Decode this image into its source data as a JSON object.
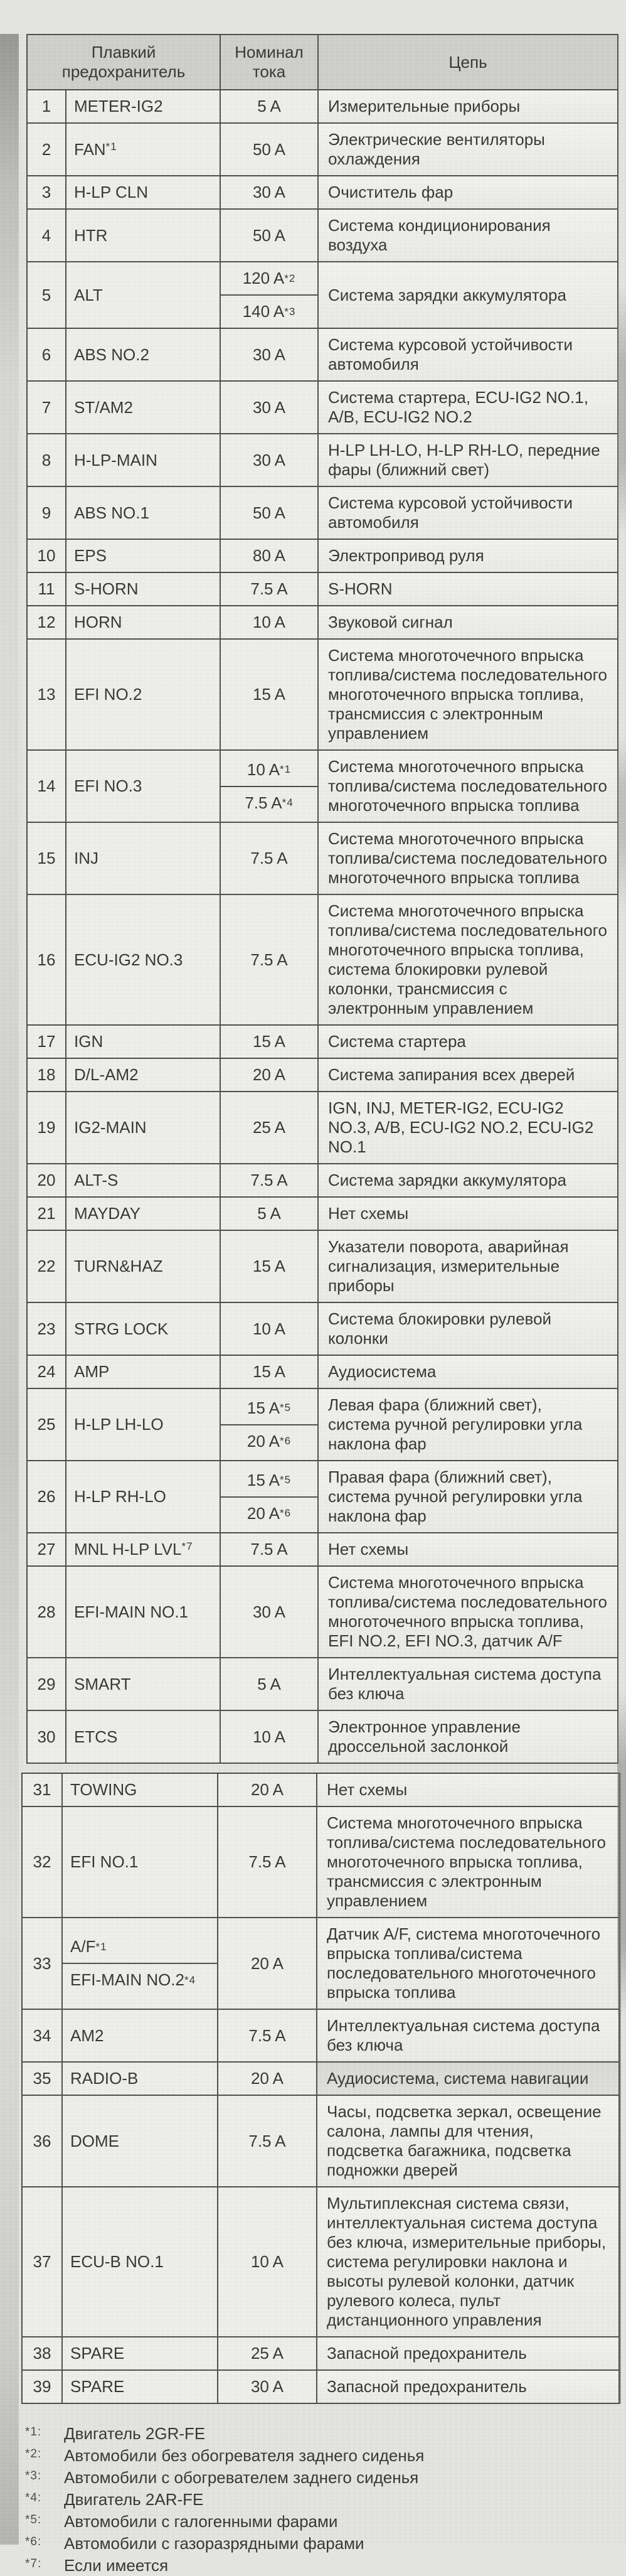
{
  "header": {
    "col_fuse": "Плавкий предохранитель",
    "col_amp": "Номинал тока",
    "col_circuit": "Цепь"
  },
  "table": {
    "split_at": 30,
    "rows": [
      {
        "no": "1",
        "fuse": [
          {
            "t": "METER-IG2"
          }
        ],
        "amp": [
          {
            "t": "5 A"
          }
        ],
        "circuit": "Измерительные приборы"
      },
      {
        "no": "2",
        "fuse": [
          {
            "t": "FAN",
            "s": "*1"
          }
        ],
        "amp": [
          {
            "t": "50 A"
          }
        ],
        "circuit": "Электрические вентиляторы охлаждения"
      },
      {
        "no": "3",
        "fuse": [
          {
            "t": "H-LP CLN"
          }
        ],
        "amp": [
          {
            "t": "30 A"
          }
        ],
        "circuit": "Очиститель фар"
      },
      {
        "no": "4",
        "fuse": [
          {
            "t": "HTR"
          }
        ],
        "amp": [
          {
            "t": "50 A"
          }
        ],
        "circuit": "Система кондиционирования воздуха"
      },
      {
        "no": "5",
        "fuse": [
          {
            "t": "ALT"
          }
        ],
        "amp": [
          {
            "t": "120 A",
            "s": "*2"
          },
          {
            "t": "140 A",
            "s": "*3"
          }
        ],
        "circuit": "Система зарядки аккумулятора"
      },
      {
        "no": "6",
        "fuse": [
          {
            "t": "ABS NO.2"
          }
        ],
        "amp": [
          {
            "t": "30 A"
          }
        ],
        "circuit": "Система курсовой устойчивости автомобиля"
      },
      {
        "no": "7",
        "fuse": [
          {
            "t": "ST/AM2"
          }
        ],
        "amp": [
          {
            "t": "30 A"
          }
        ],
        "circuit": "Система стартера, ECU-IG2 NO.1, A/B, ECU-IG2 NO.2"
      },
      {
        "no": "8",
        "fuse": [
          {
            "t": "H-LP-MAIN"
          }
        ],
        "amp": [
          {
            "t": "30 A"
          }
        ],
        "circuit": "H-LP LH-LO, H-LP RH-LO, передние фары (ближний свет)"
      },
      {
        "no": "9",
        "fuse": [
          {
            "t": "ABS NO.1"
          }
        ],
        "amp": [
          {
            "t": "50 A"
          }
        ],
        "circuit": "Система курсовой устойчивости автомобиля"
      },
      {
        "no": "10",
        "fuse": [
          {
            "t": "EPS"
          }
        ],
        "amp": [
          {
            "t": "80 A"
          }
        ],
        "circuit": "Электропривод руля"
      },
      {
        "no": "11",
        "fuse": [
          {
            "t": "S-HORN"
          }
        ],
        "amp": [
          {
            "t": "7.5 A"
          }
        ],
        "circuit": "S-HORN"
      },
      {
        "no": "12",
        "fuse": [
          {
            "t": "HORN"
          }
        ],
        "amp": [
          {
            "t": "10 A"
          }
        ],
        "circuit": "Звуковой сигнал"
      },
      {
        "no": "13",
        "fuse": [
          {
            "t": "EFI NO.2"
          }
        ],
        "amp": [
          {
            "t": "15 A"
          }
        ],
        "circuit": "Система многоточечного впрыска топлива/система последовательного многоточечного впрыска топлива, трансмиссия с электронным управлением"
      },
      {
        "no": "14",
        "fuse": [
          {
            "t": "EFI NO.3"
          }
        ],
        "amp": [
          {
            "t": "10 A",
            "s": "*1"
          },
          {
            "t": "7.5 A",
            "s": "*4"
          }
        ],
        "circuit": "Система многоточечного впрыска топлива/система последовательного многоточечного впрыска топлива"
      },
      {
        "no": "15",
        "fuse": [
          {
            "t": "INJ"
          }
        ],
        "amp": [
          {
            "t": "7.5 A"
          }
        ],
        "circuit": "Система многоточечного впрыска топлива/система последовательного многоточечного впрыска топлива"
      },
      {
        "no": "16",
        "fuse": [
          {
            "t": "ECU-IG2 NO.3"
          }
        ],
        "amp": [
          {
            "t": "7.5 A"
          }
        ],
        "circuit": "Система многоточечного впрыска топлива/система последовательного многоточечного впрыска топлива, система блокировки рулевой колонки, трансмиссия с электронным управлением"
      },
      {
        "no": "17",
        "fuse": [
          {
            "t": "IGN"
          }
        ],
        "amp": [
          {
            "t": "15 A"
          }
        ],
        "circuit": "Система стартера"
      },
      {
        "no": "18",
        "fuse": [
          {
            "t": "D/L-AM2"
          }
        ],
        "amp": [
          {
            "t": "20 A"
          }
        ],
        "circuit": "Система запирания всех дверей"
      },
      {
        "no": "19",
        "fuse": [
          {
            "t": "IG2-MAIN"
          }
        ],
        "amp": [
          {
            "t": "25 A"
          }
        ],
        "circuit": "IGN, INJ, METER-IG2, ECU-IG2 NO.3, A/B, ECU-IG2 NO.2, ECU-IG2 NO.1"
      },
      {
        "no": "20",
        "fuse": [
          {
            "t": "ALT-S"
          }
        ],
        "amp": [
          {
            "t": "7.5 A"
          }
        ],
        "circuit": "Система зарядки аккумулятора"
      },
      {
        "no": "21",
        "fuse": [
          {
            "t": "MAYDAY"
          }
        ],
        "amp": [
          {
            "t": "5 A"
          }
        ],
        "circuit": "Нет схемы"
      },
      {
        "no": "22",
        "fuse": [
          {
            "t": "TURN&HAZ"
          }
        ],
        "amp": [
          {
            "t": "15 A"
          }
        ],
        "circuit": "Указатели поворота, аварийная сигнализация, измерительные приборы"
      },
      {
        "no": "23",
        "fuse": [
          {
            "t": "STRG LOCK"
          }
        ],
        "amp": [
          {
            "t": "10 A"
          }
        ],
        "circuit": "Система блокировки рулевой колонки"
      },
      {
        "no": "24",
        "fuse": [
          {
            "t": "AMP"
          }
        ],
        "amp": [
          {
            "t": "15 A"
          }
        ],
        "circuit": "Аудиосистема"
      },
      {
        "no": "25",
        "fuse": [
          {
            "t": "H-LP LH-LO"
          }
        ],
        "amp": [
          {
            "t": "15 A",
            "s": "*5"
          },
          {
            "t": "20 A",
            "s": "*6"
          }
        ],
        "circuit": "Левая фара (ближний свет), система ручной регулировки угла наклона фар"
      },
      {
        "no": "26",
        "fuse": [
          {
            "t": "H-LP RH-LO"
          }
        ],
        "amp": [
          {
            "t": "15 A",
            "s": "*5"
          },
          {
            "t": "20 A",
            "s": "*6"
          }
        ],
        "circuit": "Правая фара (ближний свет), система ручной регулировки угла наклона фар"
      },
      {
        "no": "27",
        "fuse": [
          {
            "t": "MNL H-LP LVL",
            "s": "*7"
          }
        ],
        "amp": [
          {
            "t": "7.5 A"
          }
        ],
        "circuit": "Нет схемы"
      },
      {
        "no": "28",
        "fuse": [
          {
            "t": "EFI-MAIN NO.1"
          }
        ],
        "amp": [
          {
            "t": "30 A"
          }
        ],
        "circuit": "Система многоточечного впрыска топлива/система последовательного многоточечного впрыска топлива, EFI NO.2, EFI NO.3, датчик A/F"
      },
      {
        "no": "29",
        "fuse": [
          {
            "t": "SMART"
          }
        ],
        "amp": [
          {
            "t": "5 A"
          }
        ],
        "circuit": "Интеллектуальная система доступа без ключа"
      },
      {
        "no": "30",
        "fuse": [
          {
            "t": "ETCS"
          }
        ],
        "amp": [
          {
            "t": "10 A"
          }
        ],
        "circuit": "Электронное управление дроссельной заслонкой"
      },
      {
        "no": "31",
        "fuse": [
          {
            "t": "TOWING"
          }
        ],
        "amp": [
          {
            "t": "20 A"
          }
        ],
        "circuit": "Нет схемы"
      },
      {
        "no": "32",
        "fuse": [
          {
            "t": "EFI NO.1"
          }
        ],
        "amp": [
          {
            "t": "7.5 A"
          }
        ],
        "circuit": "Система многоточечного впрыска топлива/система последовательного многоточечного впрыска топлива, трансмиссия с электронным управлением"
      },
      {
        "no": "33",
        "fuse": [
          {
            "t": "A/F",
            "s": "*1"
          },
          {
            "t": "EFI-MAIN NO.2",
            "s": "*4"
          }
        ],
        "amp": [
          {
            "t": "20 A"
          }
        ],
        "circuit": "Датчик A/F, система многоточечного впрыска топлива/система последовательного многоточечного впрыска топлива"
      },
      {
        "no": "34",
        "fuse": [
          {
            "t": "AM2"
          }
        ],
        "amp": [
          {
            "t": "7.5 A"
          }
        ],
        "circuit": "Интеллектуальная система доступа без ключа"
      },
      {
        "no": "35",
        "fuse": [
          {
            "t": "RADIO-B"
          }
        ],
        "amp": [
          {
            "t": "20 A"
          }
        ],
        "circuit": "Аудиосистема, система навигации",
        "shaded": true
      },
      {
        "no": "36",
        "fuse": [
          {
            "t": "DOME"
          }
        ],
        "amp": [
          {
            "t": "7.5 A"
          }
        ],
        "circuit": "Часы, подсветка зеркал, освещение салона, лампы для чтения, подсветка багажника, подсветка подножки дверей"
      },
      {
        "no": "37",
        "fuse": [
          {
            "t": "ECU-B NO.1"
          }
        ],
        "amp": [
          {
            "t": "10 A"
          }
        ],
        "circuit": "Мультиплексная система связи, интеллектуальная система доступа без ключа, измерительные приборы, система регулировки наклона и высоты рулевой колонки, датчик рулевого колеса, пульт дистанционного управления"
      },
      {
        "no": "38",
        "fuse": [
          {
            "t": "SPARE"
          }
        ],
        "amp": [
          {
            "t": "25 A"
          }
        ],
        "circuit": "Запасной предохранитель"
      },
      {
        "no": "39",
        "fuse": [
          {
            "t": "SPARE"
          }
        ],
        "amp": [
          {
            "t": "30 A"
          }
        ],
        "circuit": "Запасной предохранитель"
      }
    ]
  },
  "footnotes": [
    {
      "marker": "*1:",
      "text": "Двигатель 2GR-FE"
    },
    {
      "marker": "*2:",
      "text": "Автомобили без обогревателя заднего сиденья"
    },
    {
      "marker": "*3:",
      "text": "Автомобили с обогревателем заднего сиденья"
    },
    {
      "marker": "*4:",
      "text": "Двигатель 2AR-FE"
    },
    {
      "marker": "*5:",
      "text": "Автомобили с галогенными фарами"
    },
    {
      "marker": "*6:",
      "text": "Автомобили с газоразрядными фарами"
    },
    {
      "marker": "*7:",
      "text": "Если имеется"
    }
  ],
  "colors": {
    "page_bg": "#e3e3e0",
    "cell_bg": "#eeeeeb",
    "header_bg": "#cfcfcc",
    "border": "#4e4e4c",
    "text": "#373737"
  }
}
